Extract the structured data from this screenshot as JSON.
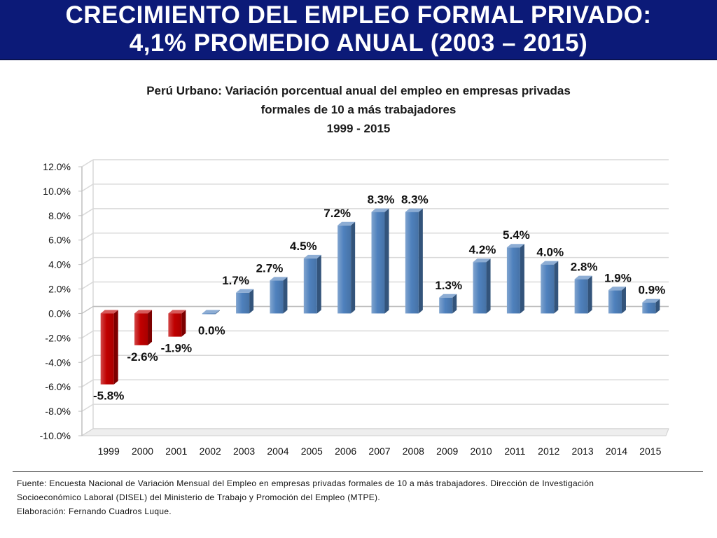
{
  "header": {
    "title_line1": "CRECIMIENTO DEL EMPLEO FORMAL PRIVADO:",
    "title_line2": "4,1% PROMEDIO ANUAL (2003 – 2015)"
  },
  "colors": {
    "banner": "#0c1a78",
    "positive_bar": "#4f81bd",
    "negative_bar": "#c00000"
  },
  "chart_data": {
    "type": "bar",
    "title_lines": [
      "Perú Urbano: Variación porcentual anual del empleo en empresas privadas",
      "formales de 10 a más trabajadores",
      "1999 - 2015"
    ],
    "categories": [
      "1999",
      "2000",
      "2001",
      "2002",
      "2003",
      "2004",
      "2005",
      "2006",
      "2007",
      "2008",
      "2009",
      "2010",
      "2011",
      "2012",
      "2013",
      "2014",
      "2015"
    ],
    "values": [
      -5.8,
      -2.6,
      -1.9,
      0.0,
      1.7,
      2.7,
      4.5,
      7.2,
      8.3,
      8.3,
      1.3,
      4.2,
      5.4,
      4.0,
      2.8,
      1.9,
      0.9
    ],
    "data_labels": [
      "-5.8%",
      "-2.6%",
      "-1.9%",
      "0.0%",
      "1.7%",
      "2.7%",
      "4.5%",
      "7.2%",
      "8.3%",
      "8.3%",
      "1.3%",
      "4.2%",
      "5.4%",
      "4.0%",
      "2.8%",
      "1.9%",
      "0.9%"
    ],
    "y_ticks": [
      12.0,
      10.0,
      8.0,
      6.0,
      4.0,
      2.0,
      0.0,
      -2.0,
      -4.0,
      -6.0,
      -8.0,
      -10.0
    ],
    "y_tick_labels": [
      "12.0%",
      "10.0%",
      "8.0%",
      "6.0%",
      "4.0%",
      "2.0%",
      "0.0%",
      "-2.0%",
      "-4.0%",
      "-6.0%",
      "-8.0%",
      "-10.0%"
    ],
    "ylim": [
      -10.0,
      12.0
    ],
    "xlabel": "",
    "ylabel": "",
    "grid": true,
    "legend": "none"
  },
  "footer": {
    "source_line1": "Fuente: Encuesta Nacional de Variación Mensual del Empleo en empresas privadas formales de 10 a más trabajadores. Dirección de Investigación",
    "source_line2": "Socioeconómico Laboral (DISEL) del Ministerio de Trabajo y Promoción del Empleo (MTPE).",
    "author": "Elaboración: Fernando Cuadros Luque."
  }
}
